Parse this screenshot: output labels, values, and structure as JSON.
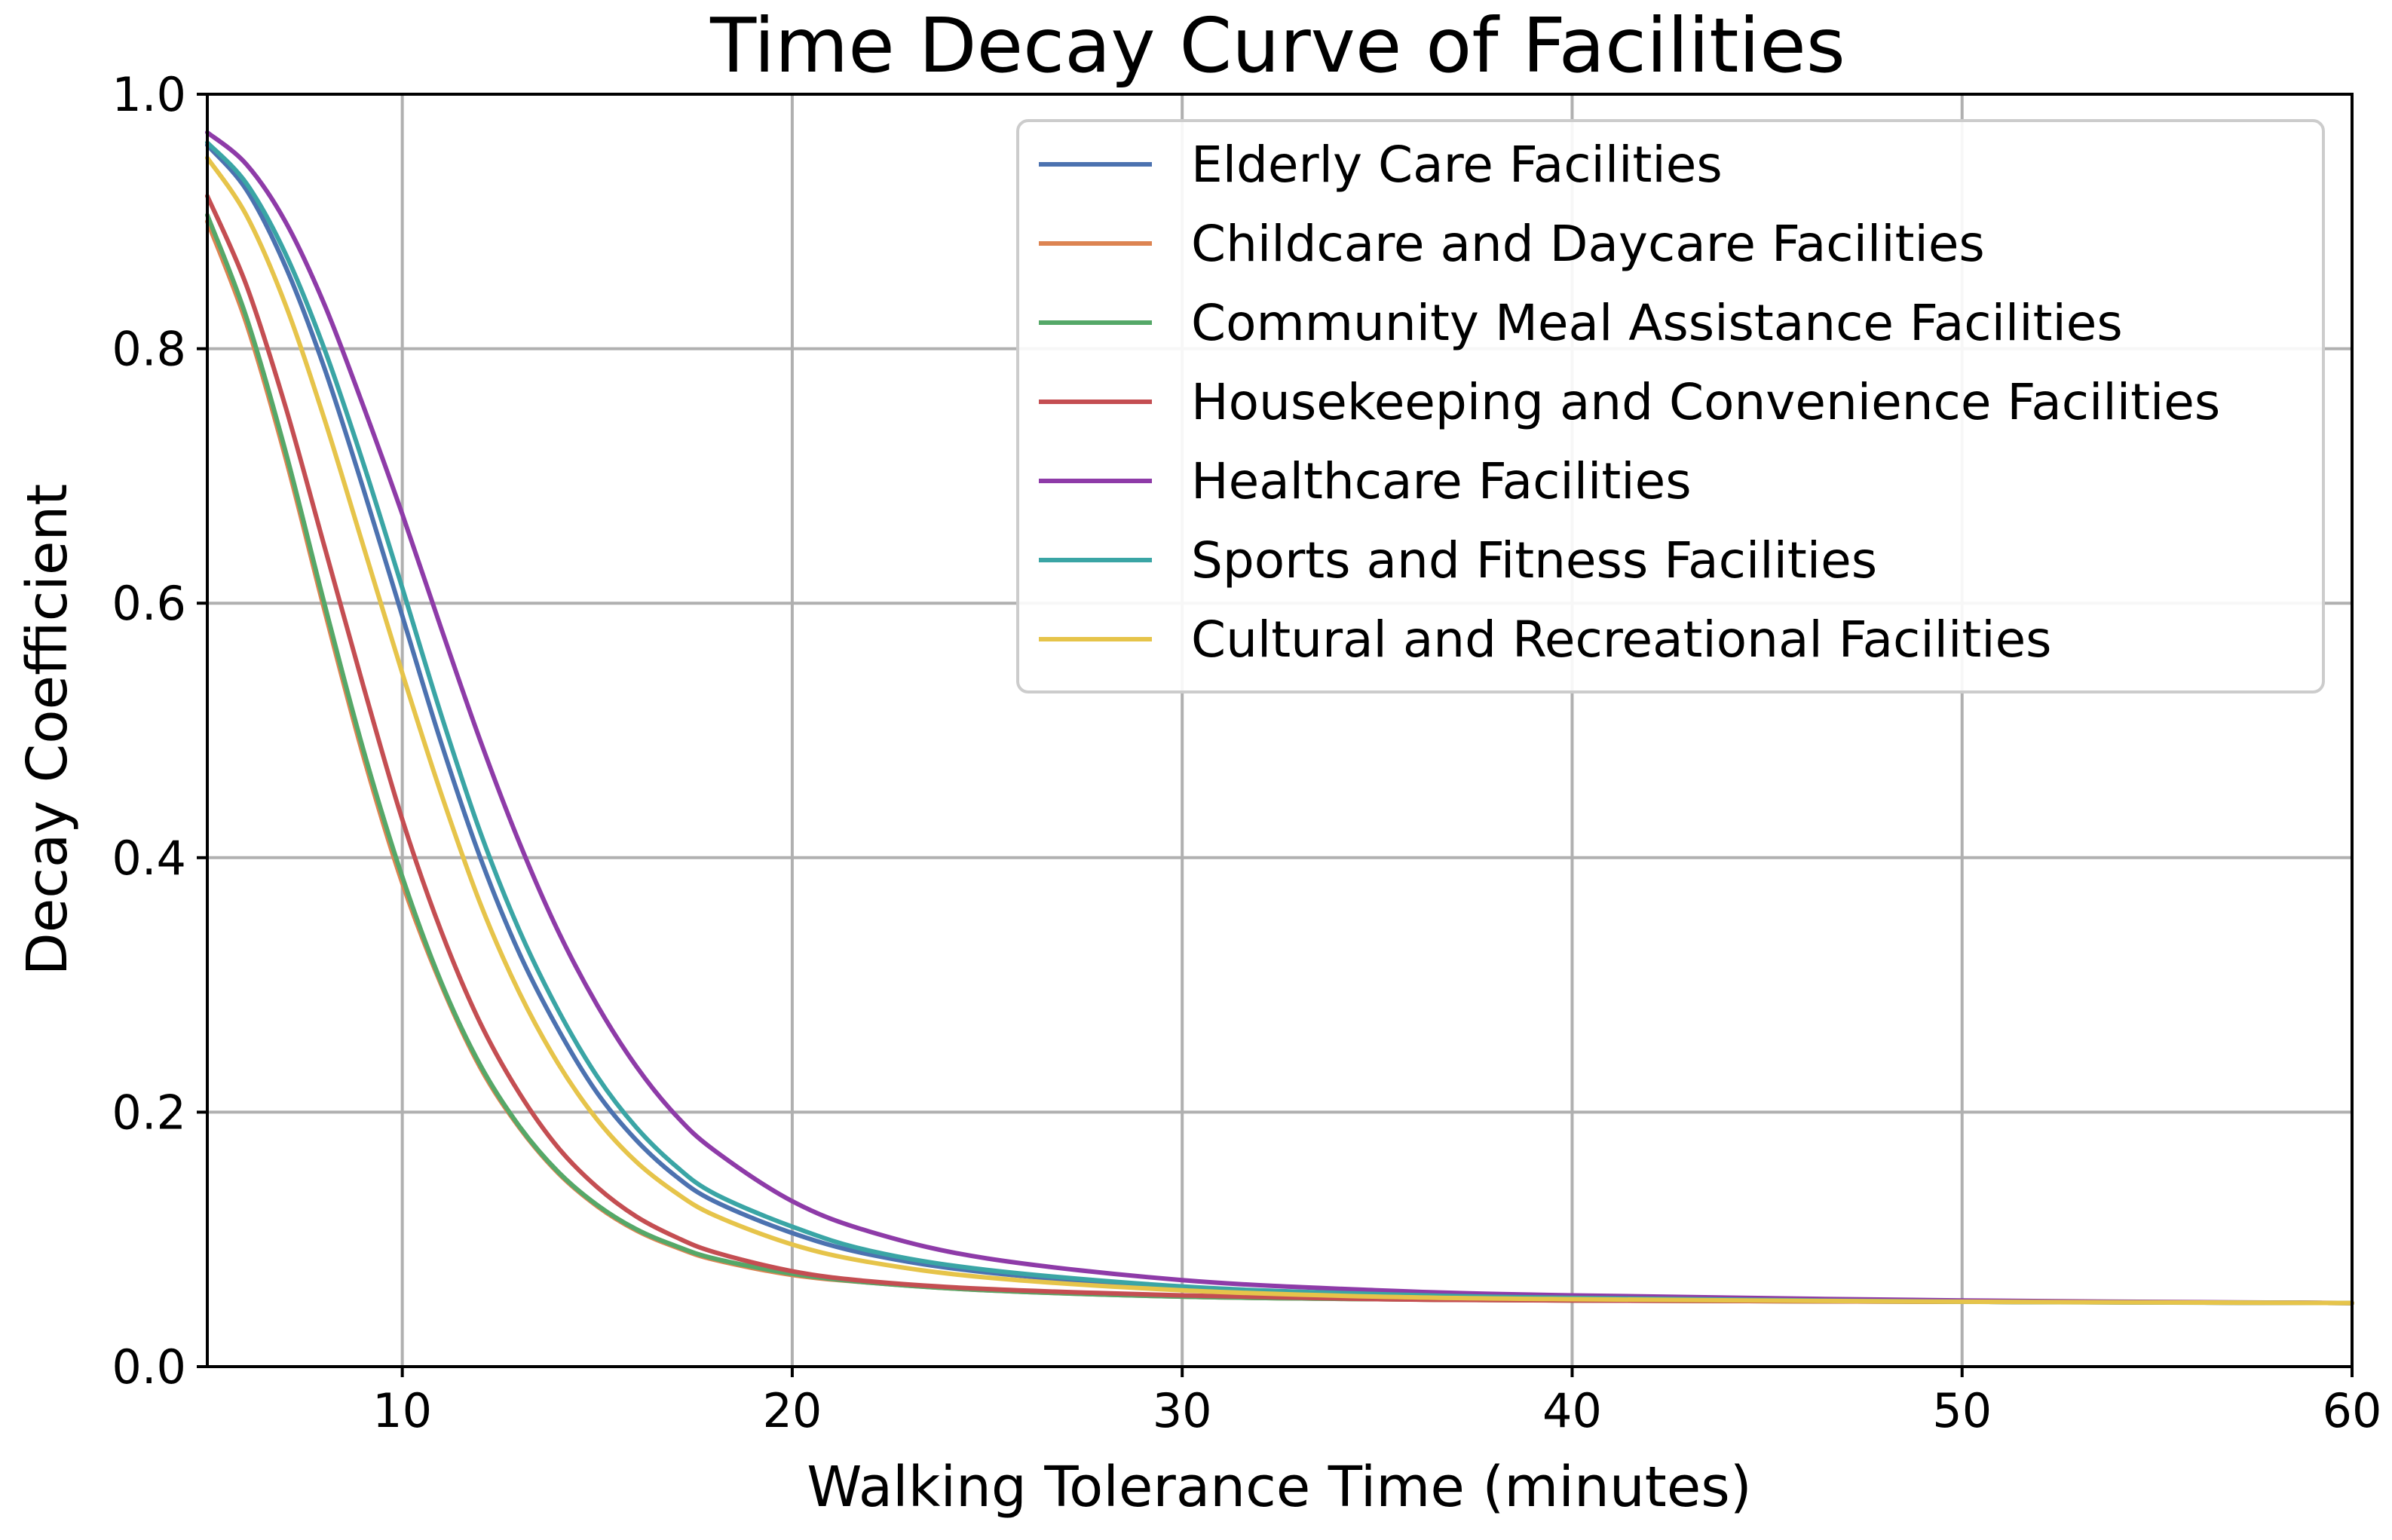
{
  "chart_data": {
    "type": "line",
    "title": "Time Decay Curve of Facilities",
    "xlabel": "Walking Tolerance Time (minutes)",
    "ylabel": "Decay Coefficient",
    "xlim": [
      5,
      60
    ],
    "ylim": [
      0,
      1.0
    ],
    "x_ticks": [
      10,
      20,
      30,
      40,
      50,
      60
    ],
    "y_ticks": [
      0.0,
      0.2,
      0.4,
      0.6,
      0.8,
      1.0
    ],
    "x_tick_labels": [
      "10",
      "20",
      "30",
      "40",
      "50",
      "60"
    ],
    "y_tick_labels": [
      "0.0",
      "0.2",
      "0.4",
      "0.6",
      "0.8",
      "1.0"
    ],
    "grid": true,
    "legend_position": "top-right",
    "x": [
      5,
      6,
      7,
      8,
      9,
      10,
      11,
      12,
      13,
      14,
      15,
      16,
      17,
      18,
      20,
      22,
      25,
      30,
      35,
      40,
      50,
      60
    ],
    "series": [
      {
        "name": "Elderly Care Facilities",
        "color": "#4c72b0",
        "values": [
          0.96,
          0.925,
          0.865,
          0.785,
          0.69,
          0.59,
          0.49,
          0.4,
          0.325,
          0.265,
          0.215,
          0.178,
          0.15,
          0.13,
          0.105,
          0.088,
          0.074,
          0.062,
          0.056,
          0.053,
          0.051,
          0.05
        ]
      },
      {
        "name": "Childcare and Daycare Facilities",
        "color": "#dd8452",
        "values": [
          0.9,
          0.82,
          0.715,
          0.595,
          0.48,
          0.38,
          0.3,
          0.235,
          0.188,
          0.152,
          0.126,
          0.107,
          0.094,
          0.084,
          0.072,
          0.066,
          0.06,
          0.055,
          0.053,
          0.052,
          0.051,
          0.05
        ]
      },
      {
        "name": "Community Meal Assistance Facilities",
        "color": "#55a868",
        "values": [
          0.905,
          0.825,
          0.72,
          0.6,
          0.485,
          0.385,
          0.302,
          0.237,
          0.189,
          0.153,
          0.127,
          0.108,
          0.095,
          0.085,
          0.073,
          0.066,
          0.06,
          0.055,
          0.053,
          0.052,
          0.051,
          0.05
        ]
      },
      {
        "name": "Housekeeping and Convenience Facilities",
        "color": "#c44e52",
        "values": [
          0.92,
          0.85,
          0.755,
          0.645,
          0.535,
          0.43,
          0.342,
          0.27,
          0.215,
          0.172,
          0.141,
          0.118,
          0.102,
          0.09,
          0.075,
          0.067,
          0.061,
          0.056,
          0.053,
          0.052,
          0.051,
          0.05
        ]
      },
      {
        "name": "Healthcare Facilities",
        "color": "#8e3ba8",
        "values": [
          0.97,
          0.945,
          0.9,
          0.835,
          0.755,
          0.67,
          0.58,
          0.492,
          0.412,
          0.342,
          0.284,
          0.236,
          0.198,
          0.17,
          0.13,
          0.106,
          0.085,
          0.068,
          0.06,
          0.056,
          0.052,
          0.05
        ]
      },
      {
        "name": "Sports and Fitness Facilities",
        "color": "#3aa5a5",
        "values": [
          0.962,
          0.93,
          0.875,
          0.8,
          0.71,
          0.612,
          0.512,
          0.42,
          0.343,
          0.28,
          0.228,
          0.188,
          0.158,
          0.136,
          0.11,
          0.091,
          0.076,
          0.063,
          0.057,
          0.054,
          0.051,
          0.05
        ]
      },
      {
        "name": "Cultural and Recreational Facilities",
        "color": "#e6c44a",
        "values": [
          0.95,
          0.905,
          0.835,
          0.745,
          0.645,
          0.545,
          0.45,
          0.364,
          0.294,
          0.238,
          0.194,
          0.161,
          0.137,
          0.119,
          0.096,
          0.082,
          0.07,
          0.06,
          0.055,
          0.053,
          0.051,
          0.05
        ]
      }
    ]
  }
}
